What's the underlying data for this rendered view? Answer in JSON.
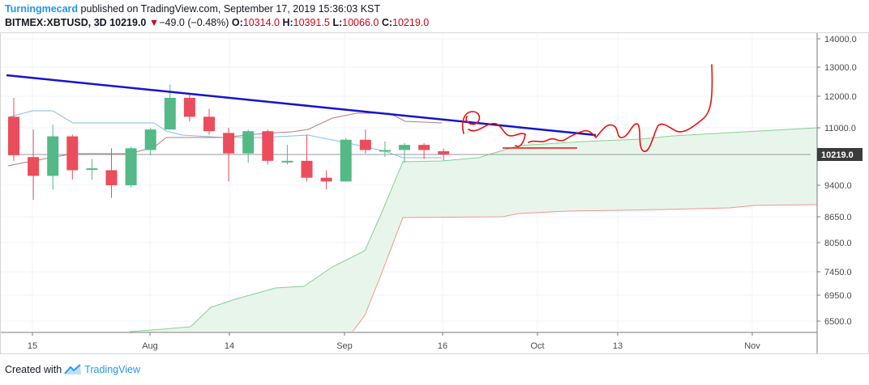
{
  "header": {
    "author": "Turningmecard",
    "published": "published on TradingView.com, September 17, 2019 15:36:03 KST",
    "symbol": "BITMEX:XBTUSD, 3D",
    "last": "10219.0",
    "change_arrow": "▼",
    "change": "−49.0 (−0.48%)",
    "o_label": "O:",
    "o_value": "10314.0",
    "h_label": "H:",
    "h_value": "10391.5",
    "l_label": "L:",
    "l_value": "10066.0",
    "c_label": "C:",
    "c_value": "10219.0"
  },
  "footer": {
    "prefix": "Created with",
    "brand": "TradingView",
    "icon": "tradingview-logo-icon"
  },
  "chart_data": {
    "type": "candlestick",
    "price_ticks": [
      "14000.0",
      "13000.0",
      "12000.0",
      "11000.0",
      "9400.0",
      "8650.0",
      "8050.0",
      "7450.0",
      "6950.0",
      "6500.0"
    ],
    "time_ticks": [
      "15",
      "Aug",
      "14",
      "Sep",
      "16",
      "Oct",
      "13",
      "Nov"
    ],
    "last_price_label": "10219.0",
    "last_price": 10219,
    "colors": {
      "up": "#53b987",
      "down": "#eb4d5c",
      "trendline": "#1010d0",
      "drawing": "#ee1111",
      "cloud_fill": "#e4f4e8",
      "span_a": "#8ad09a",
      "span_b": "#f08b80",
      "conversion": "#b07878",
      "base": "#80bde8"
    },
    "candles": [
      {
        "date": "Jul 12",
        "o": 11350,
        "h": 11950,
        "l": 10050,
        "c": 10200
      },
      {
        "date": "Jul 15",
        "o": 10150,
        "h": 10950,
        "l": 9050,
        "c": 9650
      },
      {
        "date": "Jul 18",
        "o": 9650,
        "h": 11100,
        "l": 9300,
        "c": 10750
      },
      {
        "date": "Jul 21",
        "o": 10750,
        "h": 10800,
        "l": 9550,
        "c": 9800
      },
      {
        "date": "Jul 24",
        "o": 9850,
        "h": 10100,
        "l": 9550,
        "c": 9850
      },
      {
        "date": "Jul 27",
        "o": 9800,
        "h": 10400,
        "l": 9100,
        "c": 9400
      },
      {
        "date": "Jul 30",
        "o": 9400,
        "h": 10450,
        "l": 9350,
        "c": 10400
      },
      {
        "date": "Aug 2",
        "o": 10350,
        "h": 11000,
        "l": 10200,
        "c": 10950
      },
      {
        "date": "Aug 5",
        "o": 10950,
        "h": 12400,
        "l": 10950,
        "c": 11950
      },
      {
        "date": "Aug 8",
        "o": 11950,
        "h": 12050,
        "l": 11200,
        "c": 11350
      },
      {
        "date": "Aug 11",
        "o": 11350,
        "h": 11600,
        "l": 10800,
        "c": 10900
      },
      {
        "date": "Aug 14",
        "o": 10850,
        "h": 11000,
        "l": 9500,
        "c": 10250
      },
      {
        "date": "Aug 17",
        "o": 10250,
        "h": 10950,
        "l": 10000,
        "c": 10900
      },
      {
        "date": "Aug 20",
        "o": 10900,
        "h": 10950,
        "l": 9950,
        "c": 10050
      },
      {
        "date": "Aug 23",
        "o": 10050,
        "h": 10500,
        "l": 9950,
        "c": 10050
      },
      {
        "date": "Aug 26",
        "o": 10050,
        "h": 10800,
        "l": 9500,
        "c": 9600
      },
      {
        "date": "Aug 29",
        "o": 9600,
        "h": 9800,
        "l": 9300,
        "c": 9500
      },
      {
        "date": "Sep 1",
        "o": 9500,
        "h": 10700,
        "l": 9500,
        "c": 10650
      },
      {
        "date": "Sep 4",
        "o": 10650,
        "h": 10950,
        "l": 10250,
        "c": 10350
      },
      {
        "date": "Sep 7",
        "o": 10350,
        "h": 10600,
        "l": 10150,
        "c": 10350
      },
      {
        "date": "Sep 10",
        "o": 10350,
        "h": 10550,
        "l": 10000,
        "c": 10500
      },
      {
        "date": "Sep 13",
        "o": 10500,
        "h": 10550,
        "l": 10100,
        "c": 10350
      },
      {
        "date": "Sep 16",
        "o": 10314,
        "h": 10391.5,
        "l": 10066,
        "c": 10219
      }
    ]
  }
}
